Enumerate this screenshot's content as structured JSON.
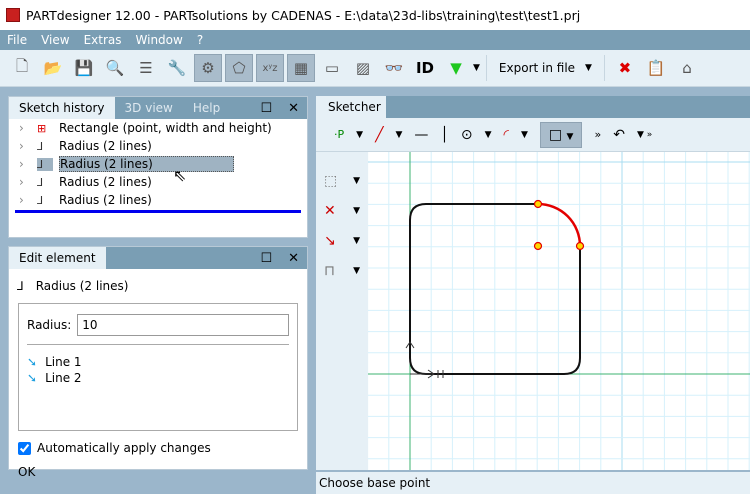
{
  "window": {
    "title": "PARTdesigner 12.00 - PARTsolutions by CADENAS - E:\\data\\23d-libs\\training\\test\\test1.prj"
  },
  "menu": [
    "File",
    "View",
    "Extras",
    "Window",
    "?"
  ],
  "toolbar": {
    "export_label": "Export in file"
  },
  "sketch_history": {
    "tabs": [
      "Sketch history",
      "3D view",
      "Help"
    ],
    "items": [
      {
        "label": "Rectangle (point, width and height)",
        "icon": "rectangle-icon"
      },
      {
        "label": "Radius (2 lines)",
        "icon": "radius-icon"
      },
      {
        "label": "Radius (2 lines)",
        "icon": "radius-icon",
        "selected": true
      },
      {
        "label": "Radius (2 lines)",
        "icon": "radius-icon"
      },
      {
        "label": "Radius (2 lines)",
        "icon": "radius-icon"
      }
    ]
  },
  "edit_element": {
    "tab": "Edit element",
    "element": "Radius (2 lines)",
    "radius_label": "Radius:",
    "radius_value": "10",
    "lines": [
      "Line 1",
      "Line 2"
    ],
    "auto_apply_label": "Automatically apply changes",
    "auto_apply": true,
    "ok_label": "OK"
  },
  "sketcher": {
    "tab": "Sketcher",
    "status": "Choose base point"
  },
  "colors": {
    "accent": "#7a9eb4",
    "selection": "#e30000",
    "grid": "#cdeefa",
    "axis": "#3cb371"
  }
}
